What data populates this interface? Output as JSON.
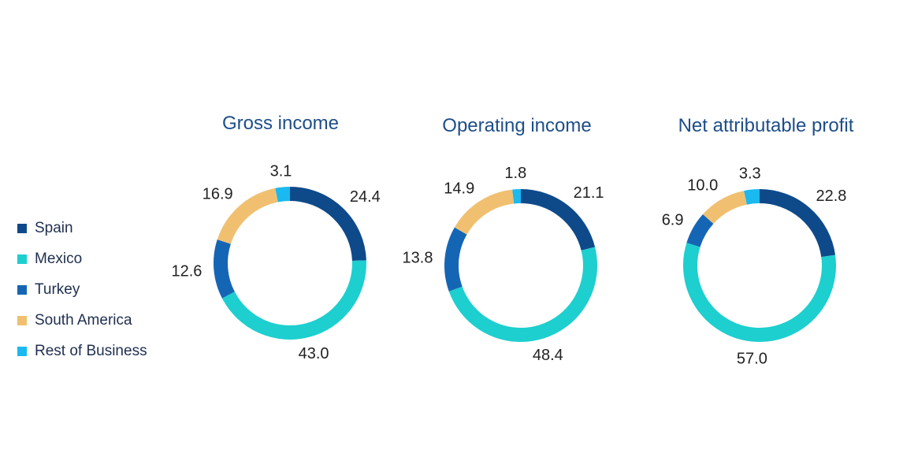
{
  "legend": [
    {
      "label": "Spain",
      "color": "#0e4a8a"
    },
    {
      "label": "Mexico",
      "color": "#1dcfcf"
    },
    {
      "label": "Turkey",
      "color": "#1466b5"
    },
    {
      "label": "South America",
      "color": "#f0c070"
    },
    {
      "label": "Rest of Business",
      "color": "#1ab9f0"
    }
  ],
  "chart_data": [
    {
      "type": "pie",
      "title": "Gross income",
      "categories": [
        "Spain",
        "Mexico",
        "Turkey",
        "South America",
        "Rest of Business"
      ],
      "values": [
        24.4,
        43.0,
        12.6,
        16.9,
        3.1
      ],
      "labels": [
        "24.4",
        "43.0",
        "12.6",
        "16.9",
        "3.1"
      ]
    },
    {
      "type": "pie",
      "title": "Operating income",
      "categories": [
        "Spain",
        "Mexico",
        "Turkey",
        "South America",
        "Rest of Business"
      ],
      "values": [
        21.1,
        48.4,
        13.8,
        14.9,
        1.8
      ],
      "labels": [
        "21.1",
        "48.4",
        "13.8",
        "14.9",
        "1.8"
      ]
    },
    {
      "type": "pie",
      "title": "Net attributable profit",
      "categories": [
        "Spain",
        "Mexico",
        "Turkey",
        "South America",
        "Rest of Business"
      ],
      "values": [
        22.8,
        57.0,
        6.9,
        10.0,
        3.3
      ],
      "labels": [
        "22.8",
        "57.0",
        "6.9",
        "10.0",
        "3.3"
      ]
    }
  ]
}
